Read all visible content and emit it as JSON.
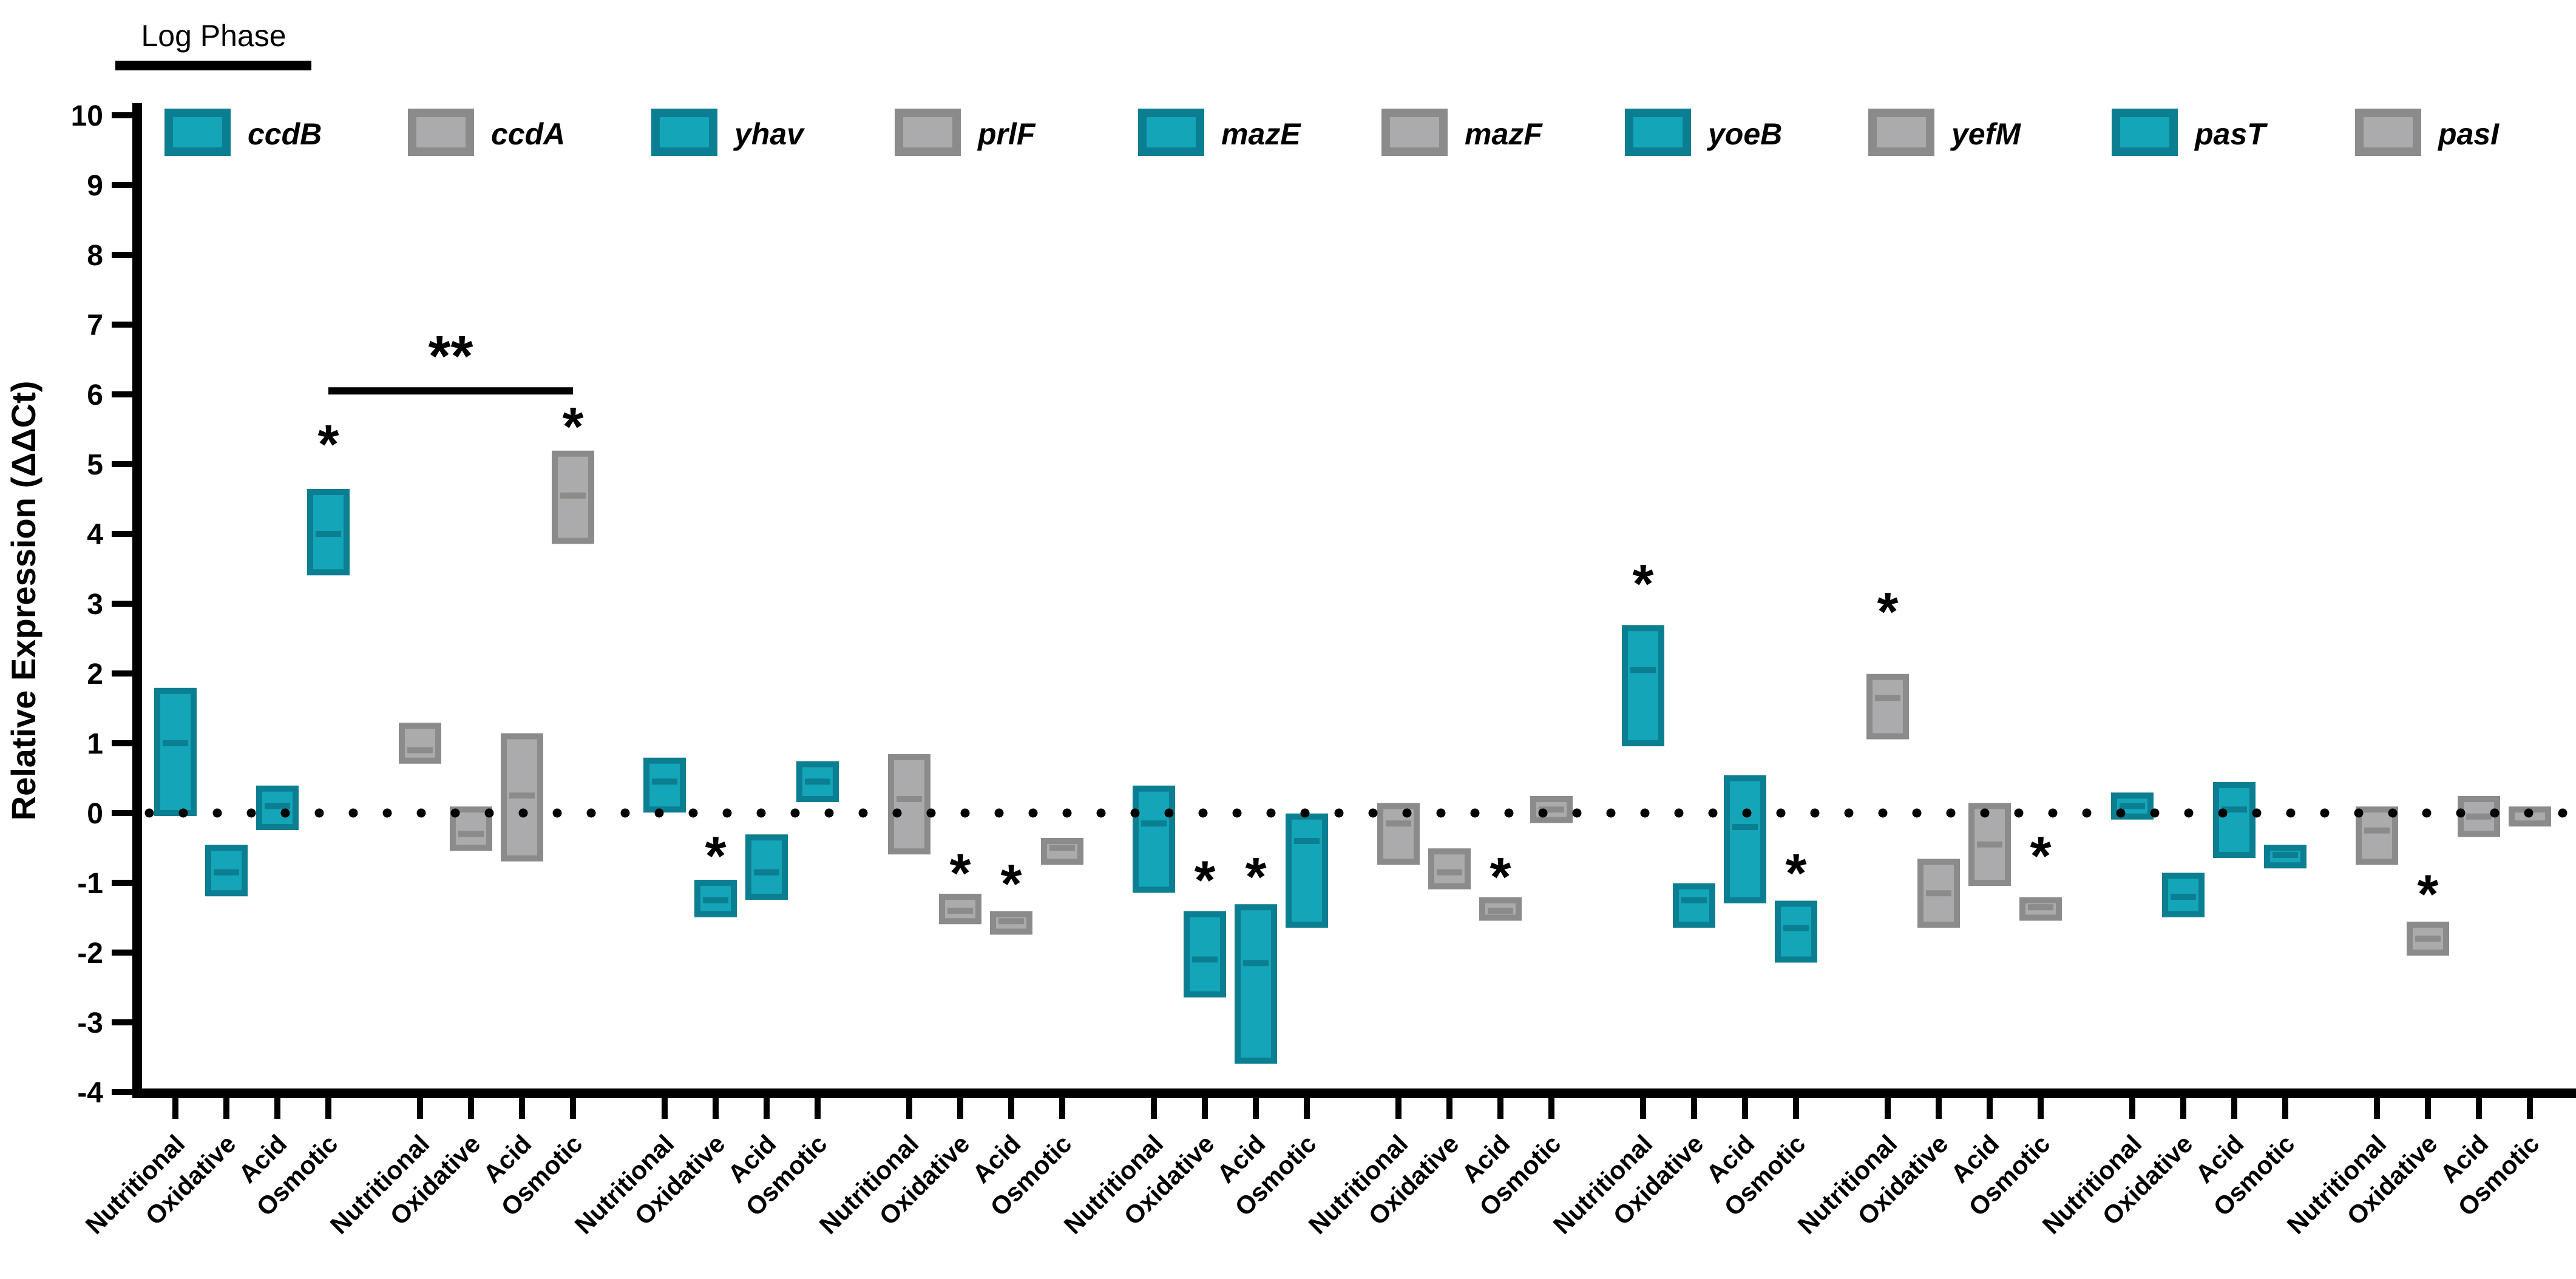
{
  "annotation": {
    "phase_label": "Log Phase"
  },
  "y_axis": {
    "label": "Relative Expression (ΔΔCt)",
    "ticks": [
      10,
      9,
      8,
      7,
      6,
      5,
      4,
      3,
      2,
      1,
      0,
      -1,
      -2,
      -3,
      -4
    ],
    "range": [
      -4,
      10
    ]
  },
  "x_axis": {
    "conditions": [
      "Nutritional",
      "Oxidative",
      "Acid",
      "Osmotic"
    ]
  },
  "legend": [
    {
      "label": "ccdB",
      "color": "teal"
    },
    {
      "label": "ccdA",
      "color": "gray"
    },
    {
      "label": "yhav",
      "color": "teal"
    },
    {
      "label": "prlF",
      "color": "gray"
    },
    {
      "label": "mazE",
      "color": "teal"
    },
    {
      "label": "mazF",
      "color": "gray"
    },
    {
      "label": "yoeB",
      "color": "teal"
    },
    {
      "label": "yefM",
      "color": "gray"
    },
    {
      "label": "pasT",
      "color": "teal"
    },
    {
      "label": "pasI",
      "color": "gray"
    }
  ],
  "colors": {
    "teal": {
      "fill": "#14a5b8",
      "dark": "#0c7e91"
    },
    "gray": {
      "fill": "#ababad",
      "dark": "#8b8b8b"
    },
    "axis": "#000000",
    "zero_line_dot": "#000000"
  },
  "chart_data": {
    "type": "floating_bar",
    "title": "",
    "xlabel": "",
    "ylabel": "Relative Expression (ΔΔCt)",
    "ylim": [
      -4,
      10
    ],
    "zero_line": 0,
    "categories": [
      "Nutritional",
      "Oxidative",
      "Acid",
      "Osmotic"
    ],
    "series": [
      {
        "gene": "ccdB",
        "color": "teal",
        "bars": [
          {
            "condition": "Nutritional",
            "min": 0.0,
            "max": 1.75,
            "median": 1.0,
            "star": null
          },
          {
            "condition": "Oxidative",
            "min": -1.15,
            "max": -0.5,
            "median": -0.85,
            "star": null
          },
          {
            "condition": "Acid",
            "min": -0.2,
            "max": 0.35,
            "median": 0.1,
            "star": null
          },
          {
            "condition": "Osmotic",
            "min": 3.45,
            "max": 4.6,
            "median": 4.0,
            "star": 5.35
          }
        ]
      },
      {
        "gene": "ccdA",
        "color": "gray",
        "bars": [
          {
            "condition": "Nutritional",
            "min": 0.75,
            "max": 1.25,
            "median": 0.9,
            "star": null
          },
          {
            "condition": "Oxidative",
            "min": -0.5,
            "max": 0.05,
            "median": -0.3,
            "star": null
          },
          {
            "condition": "Acid",
            "min": -0.65,
            "max": 1.1,
            "median": 0.25,
            "star": null
          },
          {
            "condition": "Osmotic",
            "min": 3.9,
            "max": 5.15,
            "median": 4.55,
            "star": 5.6
          }
        ]
      },
      {
        "gene": "yhav",
        "color": "teal",
        "bars": [
          {
            "condition": "Nutritional",
            "min": 0.05,
            "max": 0.75,
            "median": 0.45,
            "star": null
          },
          {
            "condition": "Oxidative",
            "min": -1.45,
            "max": -1.0,
            "median": -1.25,
            "star": -0.55
          },
          {
            "condition": "Acid",
            "min": -1.2,
            "max": -0.35,
            "median": -0.85,
            "star": null
          },
          {
            "condition": "Osmotic",
            "min": 0.2,
            "max": 0.7,
            "median": 0.45,
            "star": null
          }
        ]
      },
      {
        "gene": "prlF",
        "color": "gray",
        "bars": [
          {
            "condition": "Nutritional",
            "min": -0.55,
            "max": 0.8,
            "median": 0.2,
            "star": null
          },
          {
            "condition": "Oxidative",
            "min": -1.55,
            "max": -1.2,
            "median": -1.4,
            "star": -0.8
          },
          {
            "condition": "Acid",
            "min": -1.7,
            "max": -1.45,
            "median": -1.55,
            "star": -0.95
          },
          {
            "condition": "Osmotic",
            "min": -0.7,
            "max": -0.4,
            "median": -0.5,
            "star": null
          }
        ]
      },
      {
        "gene": "mazE",
        "color": "teal",
        "bars": [
          {
            "condition": "Nutritional",
            "min": -1.1,
            "max": 0.35,
            "median": -0.15,
            "star": null
          },
          {
            "condition": "Oxidative",
            "min": -2.6,
            "max": -1.45,
            "median": -2.1,
            "star": -0.9
          },
          {
            "condition": "Acid",
            "min": -3.55,
            "max": -1.35,
            "median": -2.15,
            "star": -0.85
          },
          {
            "condition": "Osmotic",
            "min": -1.6,
            "max": -0.05,
            "median": -0.4,
            "star": null
          }
        ]
      },
      {
        "gene": "mazF",
        "color": "gray",
        "bars": [
          {
            "condition": "Nutritional",
            "min": -0.7,
            "max": 0.1,
            "median": -0.15,
            "star": null
          },
          {
            "condition": "Oxidative",
            "min": -1.05,
            "max": -0.55,
            "median": -0.85,
            "star": null
          },
          {
            "condition": "Acid",
            "min": -1.5,
            "max": -1.25,
            "median": -1.4,
            "star": -0.85
          },
          {
            "condition": "Osmotic",
            "min": -0.1,
            "max": 0.2,
            "median": 0.05,
            "star": null
          }
        ]
      },
      {
        "gene": "yoeB",
        "color": "teal",
        "bars": [
          {
            "condition": "Nutritional",
            "min": 1.0,
            "max": 2.65,
            "median": 2.05,
            "star": 3.35
          },
          {
            "condition": "Oxidative",
            "min": -1.6,
            "max": -1.05,
            "median": -1.25,
            "star": null
          },
          {
            "condition": "Acid",
            "min": -1.25,
            "max": 0.5,
            "median": -0.2,
            "star": null
          },
          {
            "condition": "Osmotic",
            "min": -2.1,
            "max": -1.3,
            "median": -1.65,
            "star": -0.8
          }
        ]
      },
      {
        "gene": "yefM",
        "color": "gray",
        "bars": [
          {
            "condition": "Nutritional",
            "min": 1.1,
            "max": 1.95,
            "median": 1.65,
            "star": 2.95
          },
          {
            "condition": "Oxidative",
            "min": -1.6,
            "max": -0.7,
            "median": -1.15,
            "star": null
          },
          {
            "condition": "Acid",
            "min": -1.0,
            "max": 0.1,
            "median": -0.45,
            "star": null
          },
          {
            "condition": "Osmotic",
            "min": -1.5,
            "max": -1.25,
            "median": -1.35,
            "star": -0.55
          }
        ]
      },
      {
        "gene": "pasT",
        "color": "teal",
        "bars": [
          {
            "condition": "Nutritional",
            "min": -0.05,
            "max": 0.25,
            "median": 0.1,
            "star": null
          },
          {
            "condition": "Oxidative",
            "min": -1.45,
            "max": -0.9,
            "median": -1.2,
            "star": null
          },
          {
            "condition": "Acid",
            "min": -0.6,
            "max": 0.4,
            "median": 0.05,
            "star": null
          },
          {
            "condition": "Osmotic",
            "min": -0.75,
            "max": -0.5,
            "median": -0.6,
            "star": null
          }
        ]
      },
      {
        "gene": "pasI",
        "color": "gray",
        "bars": [
          {
            "condition": "Nutritional",
            "min": -0.7,
            "max": 0.05,
            "median": -0.25,
            "star": null
          },
          {
            "condition": "Oxidative",
            "min": -2.0,
            "max": -1.6,
            "median": -1.8,
            "star": -1.1
          },
          {
            "condition": "Acid",
            "min": -0.3,
            "max": 0.2,
            "median": -0.05,
            "star": null
          },
          {
            "condition": "Osmotic",
            "min": -0.15,
            "max": 0.05,
            "median": -0.05,
            "star": null
          }
        ]
      }
    ],
    "significance_bracket": {
      "from_gene": "ccdB",
      "from_condition": "Osmotic",
      "to_gene": "ccdA",
      "to_condition": "Osmotic",
      "label": "**",
      "line_y": 6.05,
      "label_y": 6.6
    },
    "legend_position": "top",
    "grid": false
  }
}
